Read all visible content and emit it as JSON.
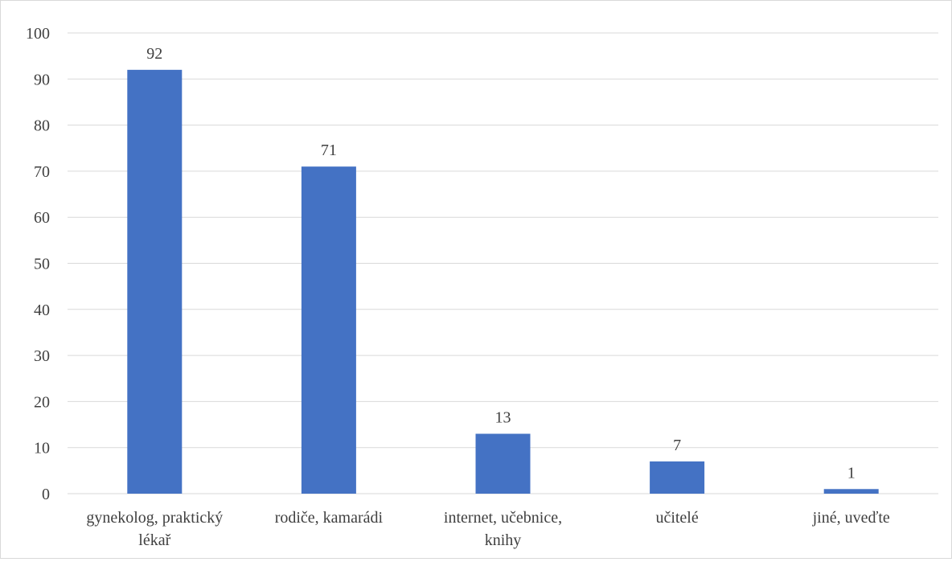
{
  "chart_data": {
    "type": "bar",
    "title": "",
    "xlabel": "",
    "ylabel": "",
    "categories": [
      [
        "gynekolog, praktický",
        "lékař"
      ],
      [
        "rodiče, kamarádi"
      ],
      [
        "internet, učebnice,",
        "knihy"
      ],
      [
        "učitelé"
      ],
      [
        "jiné, uveďte"
      ]
    ],
    "values": [
      92,
      71,
      13,
      7,
      1
    ],
    "data_labels": [
      "92",
      "71",
      "13",
      "7",
      "1"
    ],
    "ylim": [
      0,
      100
    ],
    "yticks": [
      "0",
      "10",
      "20",
      "30",
      "40",
      "50",
      "60",
      "70",
      "80",
      "90",
      "100"
    ],
    "grid": true,
    "legend": "none",
    "bar_color": "#4472C4",
    "grid_color": "#d9d9d9"
  }
}
